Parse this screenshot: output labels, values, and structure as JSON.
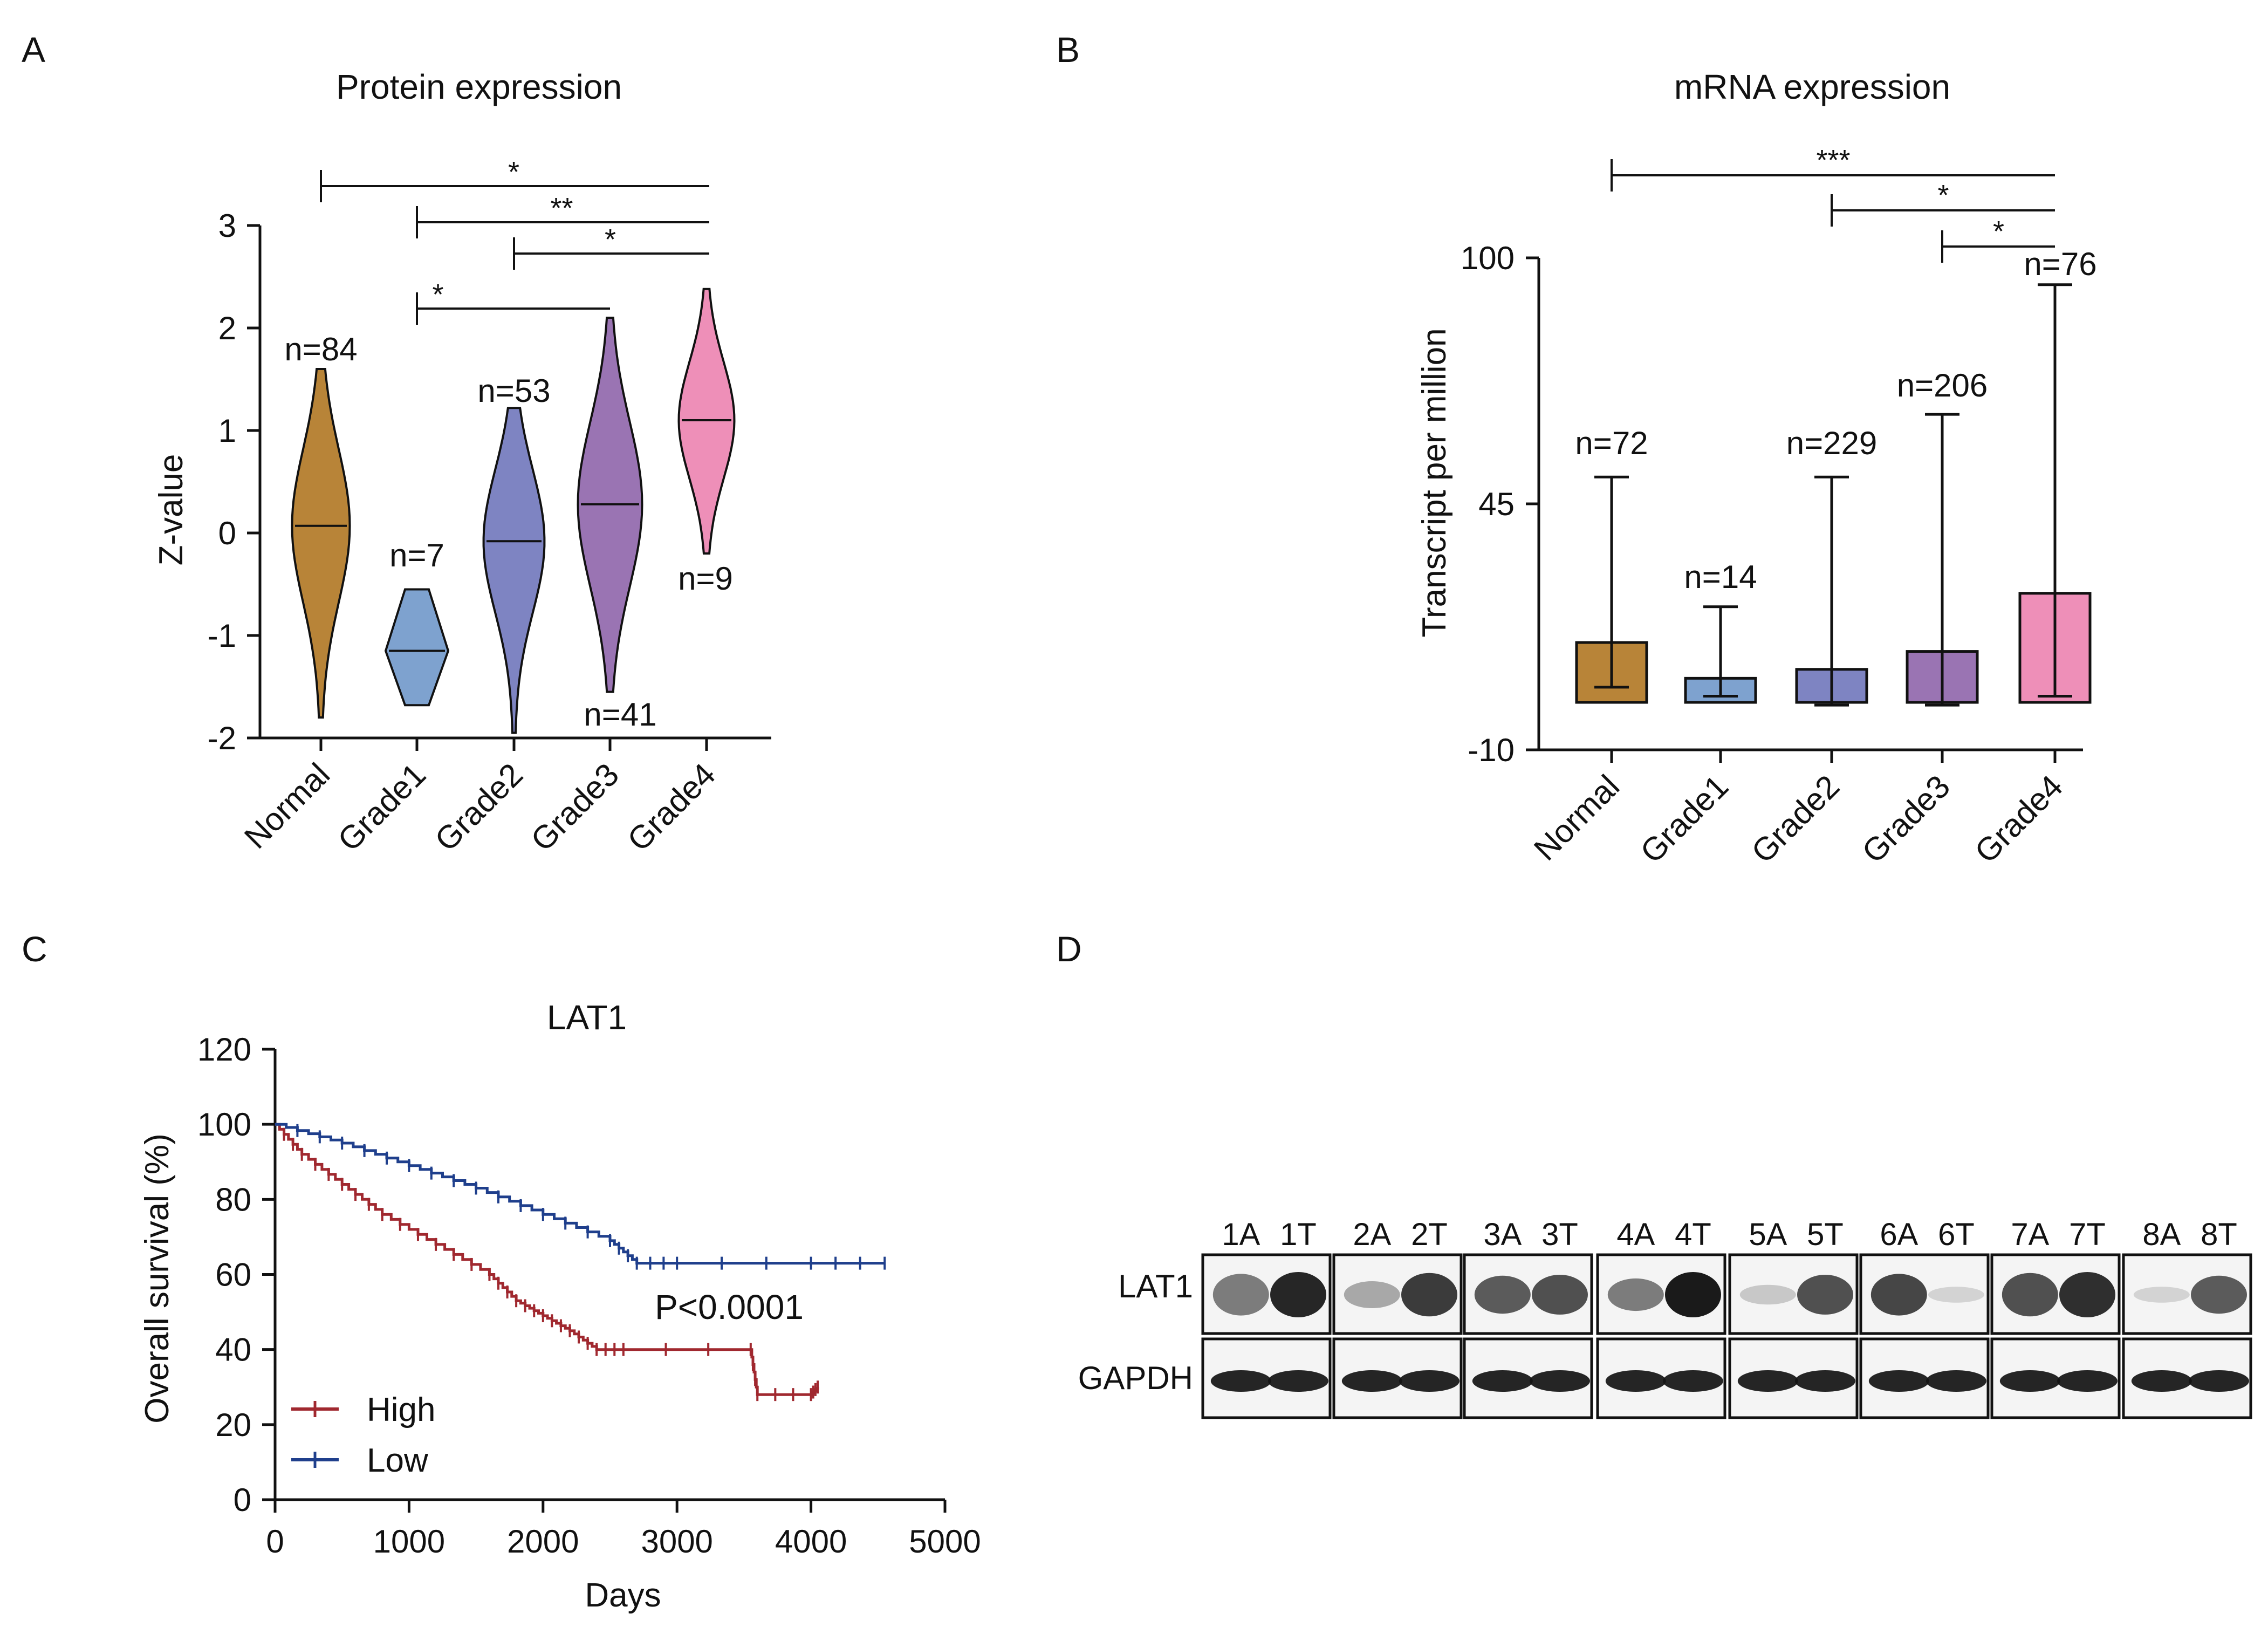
{
  "panels": {
    "A": {
      "letter": "A"
    },
    "B": {
      "letter": "B"
    },
    "C": {
      "letter": "C"
    },
    "D": {
      "letter": "D"
    }
  },
  "colors": {
    "normal": "#b88438",
    "grade1": "#7ea2cf",
    "grade2": "#7e84c2",
    "grade3": "#9a74b3",
    "grade4": "#ee8fb8",
    "high": "#a0282f",
    "low": "#1f3f8c"
  },
  "chart_data": [
    {
      "panel": "A",
      "type": "violin",
      "title": "Protein expression",
      "ylabel": "Z-value",
      "ylim": [
        -2,
        3
      ],
      "yticks": [
        "3",
        "2",
        "1",
        "0",
        "-1",
        "-2"
      ],
      "categories": [
        "Normal",
        "Grade1",
        "Grade2",
        "Grade3",
        "Grade4"
      ],
      "medians": [
        0.07,
        -1.15,
        -0.08,
        0.28,
        1.1
      ],
      "ranges": [
        [
          -1.8,
          1.6
        ],
        [
          -1.68,
          -0.55
        ],
        [
          -1.95,
          1.22
        ],
        [
          -1.55,
          2.1
        ],
        [
          -0.2,
          2.38
        ]
      ],
      "n_labels": [
        "n=84",
        "n=7",
        "n=53",
        "n=41",
        "n=9"
      ],
      "significance": [
        {
          "from": "Normal",
          "to": "Grade4",
          "label": "*"
        },
        {
          "from": "Grade1",
          "to": "Grade4",
          "label": "**"
        },
        {
          "from": "Grade2",
          "to": "Grade4",
          "label": "*"
        },
        {
          "from": "Grade1",
          "to": "Grade3",
          "label": "*"
        }
      ]
    },
    {
      "panel": "B",
      "type": "bar",
      "title": "mRNA expression",
      "ylabel": "Transcript per million",
      "ylim": [
        -10,
        100
      ],
      "yticks": [
        "100",
        "45",
        "-10"
      ],
      "categories": [
        "Normal",
        "Grade1",
        "Grade2",
        "Grade3",
        "Grade4"
      ],
      "values": [
        14,
        6,
        8,
        12,
        25
      ],
      "whisker_low": [
        4,
        2,
        0,
        0,
        2
      ],
      "whisker_high": [
        51,
        22,
        51,
        65,
        94
      ],
      "n_labels": [
        "n=72",
        "n=14",
        "n=229",
        "n=206",
        "n=76"
      ],
      "significance": [
        {
          "from": "Normal",
          "to": "Grade4",
          "label": "***"
        },
        {
          "from": "Grade2",
          "to": "Grade4",
          "label": "*"
        },
        {
          "from": "Grade3",
          "to": "Grade4",
          "label": "*"
        }
      ]
    },
    {
      "panel": "C",
      "type": "line",
      "title": "LAT1",
      "xlabel": "Days",
      "ylabel": "Overall survival (%)",
      "xlim": [
        0,
        5000
      ],
      "ylim": [
        0,
        120
      ],
      "xticks": [
        "0",
        "1000",
        "2000",
        "3000",
        "4000",
        "5000"
      ],
      "yticks": [
        "120",
        "100",
        "80",
        "60",
        "40",
        "20",
        "0"
      ],
      "annotation": "P<0.0001",
      "series": [
        {
          "name": "High",
          "x": [
            0,
            200,
            500,
            800,
            1200,
            1600,
            1800,
            2000,
            2200,
            2400,
            2600,
            3550,
            3600,
            4000,
            4050
          ],
          "y": [
            100,
            92,
            84,
            76,
            68,
            60,
            53,
            49,
            45,
            40,
            40,
            40,
            28,
            28,
            30
          ]
        },
        {
          "name": "Low",
          "x": [
            0,
            500,
            1000,
            1500,
            2000,
            2500,
            2700,
            3000,
            4000,
            4550
          ],
          "y": [
            100,
            95,
            89,
            83,
            76,
            69,
            63,
            63,
            63,
            63
          ]
        }
      ],
      "legend": [
        "High",
        "Low"
      ]
    }
  ],
  "blot": {
    "lane_labels": [
      "1A",
      "1T",
      "2A",
      "2T",
      "3A",
      "3T",
      "4A",
      "4T",
      "5A",
      "5T",
      "6A",
      "6T",
      "7A",
      "7T",
      "8A",
      "8T"
    ],
    "row_labels": [
      "LAT1",
      "GAPDH"
    ]
  }
}
